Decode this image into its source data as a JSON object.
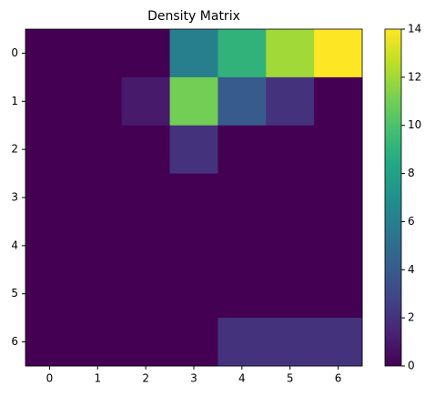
{
  "chart_data": {
    "type": "heatmap",
    "title": "Density Matrix",
    "xticks": [
      0,
      1,
      2,
      3,
      4,
      5,
      6
    ],
    "yticks": [
      0,
      1,
      2,
      3,
      4,
      5,
      6
    ],
    "values": [
      [
        0,
        0,
        0,
        6,
        9,
        12,
        14
      ],
      [
        0,
        0,
        1,
        11,
        4,
        2,
        0
      ],
      [
        0,
        0,
        0,
        2,
        0,
        0,
        0
      ],
      [
        0,
        0,
        0,
        0,
        0,
        0,
        0
      ],
      [
        0,
        0,
        0,
        0,
        0,
        0,
        0
      ],
      [
        0,
        0,
        0,
        0,
        0,
        0,
        0
      ],
      [
        0,
        0,
        0,
        0,
        2,
        2,
        2
      ]
    ],
    "colormap": "viridis",
    "clim": [
      0,
      14
    ],
    "colorbar_ticks": [
      0,
      2,
      4,
      6,
      8,
      10,
      12,
      14
    ]
  }
}
